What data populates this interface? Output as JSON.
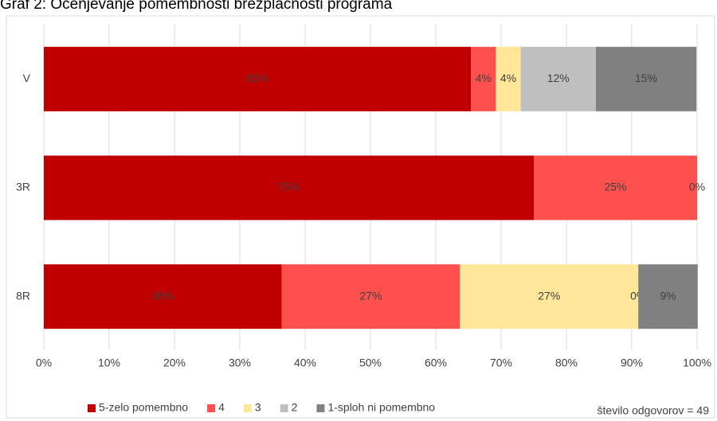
{
  "chart_data": {
    "type": "stacked_bar_horizontal",
    "title": "Graf 2: Ocenjevanje pomembnosti brezplačnosti programa",
    "categories": [
      "V",
      "3R",
      "8R"
    ],
    "series": [
      {
        "name": "5-zelo pomembno",
        "color": "#c00000",
        "values": [
          65.4,
          75,
          36.4
        ],
        "value_labels": [
          "65%",
          "75%",
          "36%"
        ]
      },
      {
        "name": "4",
        "color": "#ff5050",
        "values": [
          3.8,
          25,
          27.3
        ],
        "value_labels": [
          "4%",
          "25%",
          "27%"
        ]
      },
      {
        "name": "3",
        "color": "#ffe699",
        "values": [
          3.8,
          0,
          27.3
        ],
        "value_labels": [
          "4%",
          "0%",
          "27%"
        ]
      },
      {
        "name": "2",
        "color": "#bfbfbf",
        "values": [
          11.5,
          0,
          0
        ],
        "value_labels": [
          "12%",
          null,
          "0%"
        ]
      },
      {
        "name": "1-sploh ni pomembno",
        "color": "#808080",
        "values": [
          15.4,
          0,
          9.1
        ],
        "value_labels": [
          "15%",
          null,
          "9%"
        ]
      }
    ],
    "xlim": [
      0,
      100
    ],
    "xticks": [
      {
        "value": 0,
        "label": "0%"
      },
      {
        "value": 10,
        "label": "10%"
      },
      {
        "value": 20,
        "label": "20%"
      },
      {
        "value": 30,
        "label": "30%"
      },
      {
        "value": 40,
        "label": "40%"
      },
      {
        "value": 50,
        "label": "50%"
      },
      {
        "value": 60,
        "label": "60%"
      },
      {
        "value": 70,
        "label": "70%"
      },
      {
        "value": 80,
        "label": "80%"
      },
      {
        "value": 90,
        "label": "90%"
      },
      {
        "value": 100,
        "label": "100%"
      }
    ],
    "grid": true,
    "legend": "bottom",
    "annotation": "število odgovorov  = 49"
  }
}
